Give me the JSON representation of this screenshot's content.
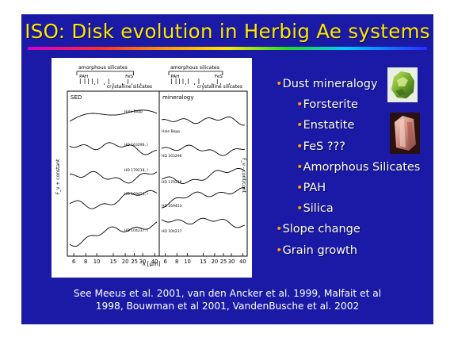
{
  "slide": {
    "title": "ISO: Disk evolution in Herbig Ae systems",
    "bullets": [
      {
        "text": "Dust mineralogy",
        "level": 1
      },
      {
        "text": "Forsterite",
        "level": 2
      },
      {
        "text": "Enstatite",
        "level": 2
      },
      {
        "text": "FeS ???",
        "level": 2
      },
      {
        "text": "Amorphous Silicates",
        "level": 2
      },
      {
        "text": "PAH",
        "level": 2
      },
      {
        "text": "Silica",
        "level": 2
      },
      {
        "text": "Slope change",
        "level": 1
      },
      {
        "text": "Grain growth",
        "level": 1
      }
    ],
    "references": [
      "See Meeus et al. 2001, van den Ancker et al. 1999, Malfait et al",
      "1998, Bouwman et al 2001, VandenBusche et al. 2002"
    ]
  },
  "figure": {
    "left_panel_label": "SED",
    "right_panel_label": "mineralogy",
    "feature_labels": {
      "amorphous": "amorphous silicates",
      "pah": "PAH",
      "fes": "FeS",
      "crystalline": "crystalline silicates"
    },
    "left_y_label": "F_ν + constant",
    "right_y_label": "F_ν - cont/cont",
    "x_label": "λ [μm]",
    "x_ticks": [
      "6",
      "8",
      "10",
      "15",
      "20",
      "25",
      "30",
      "40"
    ],
    "left_spectra": [
      "Hale Bopp",
      "HD 163296, I",
      "HD 179218, I",
      "HD 169453, I",
      "HD 104237, I"
    ],
    "right_spectra": [
      "Hale Bopp",
      "HD 163296",
      "HD 179218",
      "HD 169453",
      "HD 104237"
    ]
  },
  "colors": {
    "background": "#1a1aa6",
    "title": "#ffe800",
    "bullet_marker": "#ff9a1a",
    "text": "#ffffff"
  }
}
